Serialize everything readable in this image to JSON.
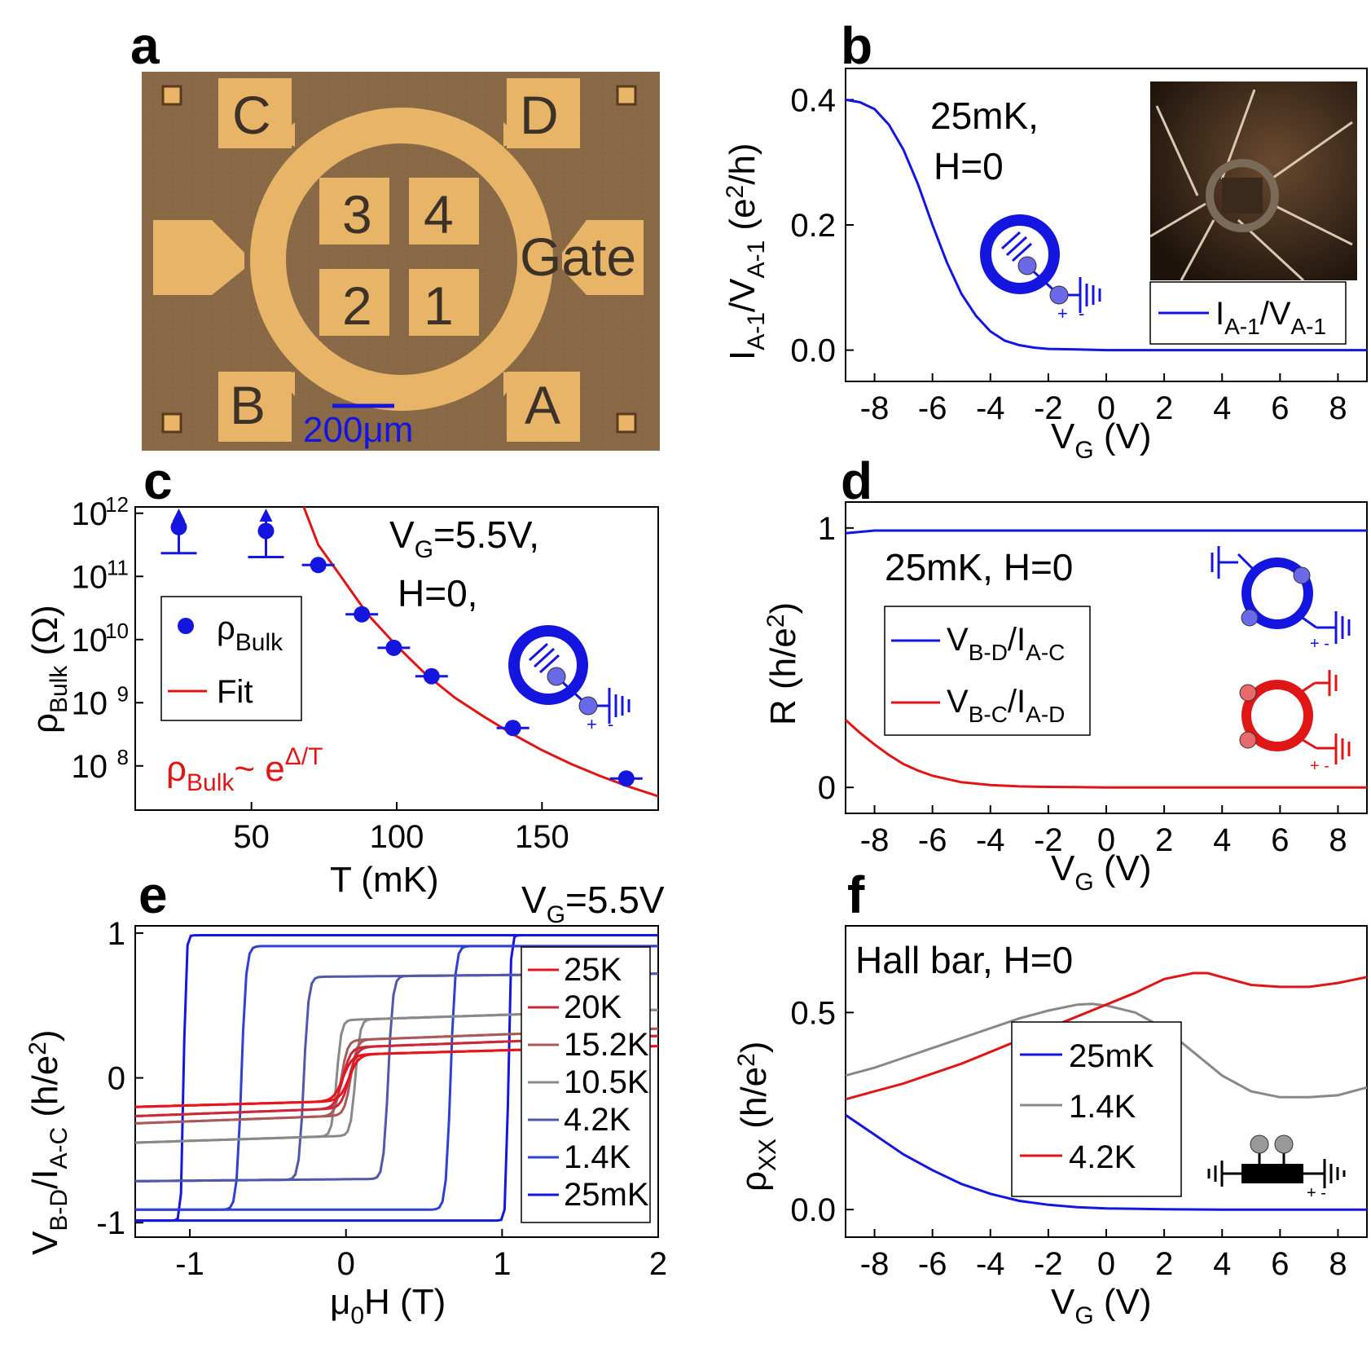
{
  "panels": {
    "a": {
      "label": "a",
      "pads": [
        "C",
        "D",
        "B",
        "A"
      ],
      "inner_pads": [
        "3",
        "4",
        "2",
        "1"
      ],
      "gate_label": "Gate",
      "scalebar_label": "200μm",
      "colors": {
        "substrate": "#8a6a46",
        "gold": "#e8b468",
        "scalebar": "#1515e0"
      }
    },
    "b": {
      "label": "b",
      "annotation": [
        "25mK,",
        "H=0"
      ],
      "inset_icon": "micrograph-photo-icon",
      "circuit_icon": "corbino-circuit-icon"
    },
    "c": {
      "label": "c",
      "annotation": [
        "V_G=5.5V,",
        "H=0,"
      ],
      "formula": "ρ_Bulk ~ e^Δ/T",
      "circuit_icon": "corbino-circuit-icon"
    },
    "d": {
      "label": "d",
      "annotation": "25mK, H=0",
      "circuit_icons": [
        "blue-circuit-icon",
        "red-circuit-icon"
      ]
    },
    "e": {
      "label": "e",
      "annotation": "V_G=5.5V"
    },
    "f": {
      "label": "f",
      "annotation": "Hall bar, H=0",
      "circuit_icon": "hall-bar-circuit-icon"
    }
  },
  "chart_data": [
    {
      "panel": "b",
      "type": "line",
      "xlabel": "V_G (V)",
      "ylabel": "I_A-1/V_A-1 (e²/h)",
      "xlim": [
        -9,
        9
      ],
      "ylim": [
        -0.05,
        0.45
      ],
      "xticks": [
        -8,
        -6,
        -4,
        -2,
        0,
        2,
        4,
        6,
        8
      ],
      "yticks": [
        0.0,
        0.2,
        0.4
      ],
      "series": [
        {
          "name": "I_A-1/V_A-1",
          "color": "#1515e0",
          "x": [
            -9,
            -8.5,
            -8,
            -7.5,
            -7,
            -6.5,
            -6,
            -5.5,
            -5,
            -4.5,
            -4,
            -3.5,
            -3,
            -2.5,
            -2,
            -1,
            0,
            2,
            4,
            6,
            8,
            9
          ],
          "y": [
            0.4,
            0.396,
            0.385,
            0.36,
            0.32,
            0.265,
            0.2,
            0.14,
            0.09,
            0.055,
            0.03,
            0.015,
            0.008,
            0.004,
            0.002,
            0.001,
            0.0,
            0.0,
            0.0,
            0.0,
            0.0,
            0.0
          ]
        }
      ],
      "legend": [
        "I_A-1/V_A-1"
      ]
    },
    {
      "panel": "c",
      "type": "scatter",
      "xlabel": "T (mK)",
      "ylabel": "ρ_Bulk (Ω)",
      "yscale": "log",
      "xlim": [
        10,
        190
      ],
      "ylim_exp": [
        7.3,
        12.1
      ],
      "xticks": [
        50,
        100,
        150
      ],
      "yticks": [
        "10^8",
        "10^9",
        "10^10",
        "10^11",
        "10^12"
      ],
      "series": [
        {
          "name": "ρ_Bulk",
          "color": "#1515e0",
          "marker": "circle",
          "x": [
            25,
            55,
            73,
            88,
            99,
            112,
            140,
            179
          ],
          "y_log10": [
            11.78,
            11.72,
            11.18,
            10.4,
            9.87,
            9.42,
            8.6,
            7.8
          ],
          "lower_bound": [
            true,
            true,
            false,
            false,
            false,
            false,
            false,
            false
          ]
        },
        {
          "name": "Fit",
          "color": "#e01515",
          "line": true,
          "x": [
            68,
            73,
            80,
            90,
            100,
            110,
            120,
            130,
            140,
            150,
            160,
            170,
            180,
            190
          ],
          "y_log10": [
            12.15,
            11.5,
            11.05,
            10.4,
            9.9,
            9.45,
            9.08,
            8.78,
            8.5,
            8.25,
            8.03,
            7.84,
            7.67,
            7.52
          ]
        }
      ],
      "legend": [
        "ρ_Bulk",
        "Fit"
      ]
    },
    {
      "panel": "d",
      "type": "line",
      "xlabel": "V_G (V)",
      "ylabel": "R (h/e²)",
      "xlim": [
        -9,
        9
      ],
      "ylim": [
        -0.1,
        1.1
      ],
      "xticks": [
        -8,
        -6,
        -4,
        -2,
        0,
        2,
        4,
        6,
        8
      ],
      "yticks": [
        0,
        1
      ],
      "series": [
        {
          "name": "V_B-D/I_A-C",
          "color": "#1515e0",
          "x": [
            -9,
            -8,
            -6,
            -4,
            -2,
            0,
            2,
            4,
            6,
            8,
            9
          ],
          "y": [
            0.98,
            0.99,
            0.99,
            0.99,
            0.99,
            0.99,
            0.99,
            0.99,
            0.99,
            0.99,
            0.99
          ]
        },
        {
          "name": "V_B-C/I_A-D",
          "color": "#e01515",
          "x": [
            -9,
            -8.5,
            -8,
            -7.5,
            -7,
            -6.5,
            -6,
            -5,
            -4,
            -3,
            -2,
            -1,
            0,
            4,
            9
          ],
          "y": [
            0.26,
            0.21,
            0.165,
            0.125,
            0.09,
            0.065,
            0.045,
            0.02,
            0.009,
            0.004,
            0.002,
            0.001,
            0.0,
            0.0,
            0.0
          ]
        }
      ],
      "legend": [
        "V_B-D/I_A-C",
        "V_B-C/I_A-D"
      ]
    },
    {
      "panel": "e",
      "type": "line",
      "xlabel": "μ_0H (T)",
      "ylabel": "V_B-D/I_A-C (h/e²)",
      "xlim": [
        -1.35,
        2.0
      ],
      "ylim": [
        -1.1,
        1.05
      ],
      "xticks": [
        -1,
        0,
        1,
        2
      ],
      "yticks": [
        -1,
        0,
        1
      ],
      "series": [
        {
          "name": "25K",
          "color": "#e8141c",
          "Hc": 0.02,
          "Ms": 0.16,
          "slope": 0.03,
          "width": 0.06
        },
        {
          "name": "20K",
          "color": "#c8283a",
          "Hc": 0.02,
          "Ms": 0.21,
          "slope": 0.04,
          "width": 0.05
        },
        {
          "name": "15.2K",
          "color": "#a85a5a",
          "Hc": 0.03,
          "Ms": 0.26,
          "slope": 0.04,
          "width": 0.04
        },
        {
          "name": "10.5K",
          "color": "#888888",
          "Hc": 0.06,
          "Ms": 0.4,
          "slope": 0.035,
          "width": 0.03
        },
        {
          "name": "4.2K",
          "color": "#5058a8",
          "Hc": 0.27,
          "Ms": 0.7,
          "slope": 0.01,
          "width": 0.03
        },
        {
          "name": "1.4K",
          "color": "#3040d0",
          "Hc": 0.67,
          "Ms": 0.91,
          "slope": 0.0,
          "width": 0.03
        },
        {
          "name": "25mK",
          "color": "#1515e0",
          "Hc": 1.04,
          "Ms": 0.985,
          "slope": 0.0,
          "width": 0.015
        }
      ],
      "legend": [
        "25K",
        "20K",
        "15.2K",
        "10.5K",
        "4.2K",
        "1.4K",
        "25mK"
      ]
    },
    {
      "panel": "f",
      "type": "line",
      "xlabel": "V_G (V)",
      "ylabel": "ρ_XX (h/e²)",
      "xlim": [
        -9,
        9
      ],
      "ylim": [
        -0.07,
        0.72
      ],
      "xticks": [
        -8,
        -6,
        -4,
        -2,
        0,
        2,
        4,
        6,
        8
      ],
      "yticks": [
        0.0,
        0.5
      ],
      "series": [
        {
          "name": "25mK",
          "color": "#1515e0",
          "x": [
            -9,
            -8,
            -7,
            -6,
            -5,
            -4,
            -3,
            -2,
            -1,
            0,
            2,
            4,
            6,
            8,
            9
          ],
          "y": [
            0.24,
            0.19,
            0.14,
            0.1,
            0.065,
            0.04,
            0.022,
            0.012,
            0.006,
            0.003,
            0.001,
            0.0,
            0.0,
            0.0,
            0.0
          ]
        },
        {
          "name": "1.4K",
          "color": "#888888",
          "x": [
            -9,
            -8,
            -7,
            -6,
            -5,
            -4,
            -3,
            -2,
            -1,
            -0.5,
            0,
            1,
            2,
            3,
            4,
            5,
            6,
            7,
            8,
            9
          ],
          "y": [
            0.34,
            0.36,
            0.385,
            0.41,
            0.435,
            0.46,
            0.485,
            0.505,
            0.52,
            0.522,
            0.518,
            0.5,
            0.46,
            0.4,
            0.34,
            0.3,
            0.285,
            0.285,
            0.29,
            0.31
          ]
        },
        {
          "name": "4.2K",
          "color": "#e01515",
          "x": [
            -9,
            -8,
            -7,
            -6,
            -5,
            -4,
            -3,
            -2,
            -1,
            0,
            1,
            2,
            3,
            3.5,
            4,
            5,
            6,
            7,
            8,
            9
          ],
          "y": [
            0.28,
            0.3,
            0.32,
            0.345,
            0.37,
            0.4,
            0.43,
            0.46,
            0.49,
            0.52,
            0.55,
            0.585,
            0.6,
            0.6,
            0.59,
            0.57,
            0.565,
            0.565,
            0.575,
            0.59
          ]
        }
      ],
      "legend": [
        "25mK",
        "1.4K",
        "4.2K"
      ]
    }
  ]
}
